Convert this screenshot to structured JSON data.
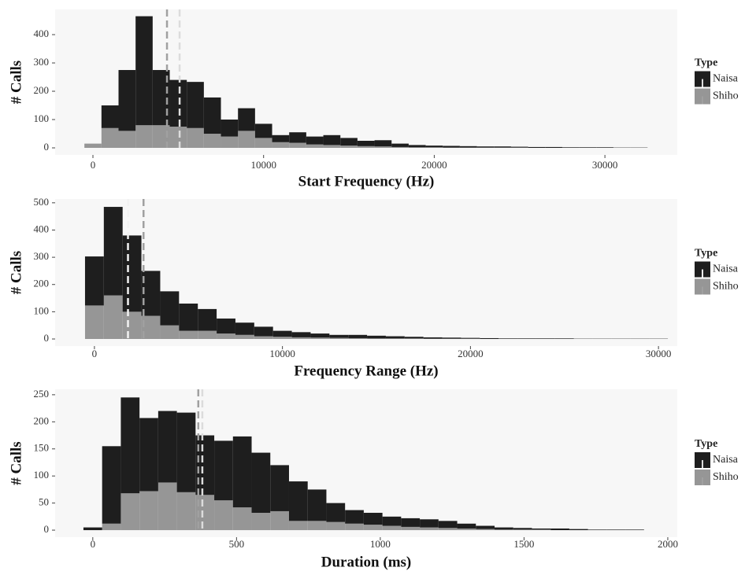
{
  "chart_data": [
    {
      "type": "histogram",
      "x_label": "Start Frequency (Hz)",
      "y_label": "# Calls",
      "legend_title": "Type",
      "legend": "right",
      "bins": [
        -500,
        500,
        1500,
        2500,
        3500,
        4500,
        5500,
        6500,
        7500,
        8500,
        9500,
        10500,
        11500,
        12500,
        13500,
        14500,
        15500,
        16500,
        17500,
        18500,
        19500,
        20500,
        21500,
        22500,
        23500,
        24500,
        25500,
        26500,
        27500,
        28500,
        29500,
        30500,
        31500,
        32500
      ],
      "series": [
        {
          "name": "Naisa",
          "color": "#1e1e1e",
          "mean": 5080,
          "mean_color": "#dcdcdc",
          "values": [
            0,
            80,
            215,
            385,
            195,
            165,
            163,
            128,
            60,
            80,
            50,
            25,
            37,
            28,
            35,
            27,
            19,
            22,
            12,
            8,
            6,
            6,
            5,
            4,
            4,
            3,
            3,
            3,
            2,
            2,
            2,
            1,
            1
          ]
        },
        {
          "name": "Shiho",
          "color": "#969696",
          "mean": 4340,
          "mean_color": "#a0a0a0",
          "values": [
            15,
            70,
            60,
            80,
            80,
            75,
            70,
            50,
            40,
            60,
            35,
            20,
            18,
            12,
            10,
            8,
            6,
            5,
            3,
            2,
            2,
            1,
            1,
            1,
            1,
            1,
            0,
            0,
            0,
            0,
            0,
            0,
            0
          ]
        }
      ],
      "xlim": [
        -2215,
        34240
      ],
      "xticks": [
        0,
        10000,
        20000,
        30000
      ],
      "ylim": [
        -25,
        489
      ],
      "yticks": [
        0,
        100,
        200,
        300,
        400
      ]
    },
    {
      "type": "histogram",
      "x_label": "Frequency Range (Hz)",
      "y_label": "# Calls",
      "legend_title": "Type",
      "legend": "right",
      "bins": [
        -500,
        500,
        1500,
        2500,
        3500,
        4500,
        5500,
        6500,
        7500,
        8500,
        9500,
        10500,
        11500,
        12500,
        13500,
        14500,
        15500,
        16500,
        17500,
        18500,
        19500,
        20500,
        21500,
        22500,
        23500,
        24500,
        25500,
        26500,
        27500,
        28500,
        29500,
        30500
      ],
      "series": [
        {
          "name": "Naisa",
          "color": "#1e1e1e",
          "mean": 1785,
          "mean_color": "#f2f2f2",
          "values": [
            180,
            325,
            280,
            165,
            125,
            100,
            80,
            55,
            45,
            35,
            22,
            19,
            15,
            11,
            12,
            10,
            8,
            6,
            5,
            4,
            3,
            3,
            2,
            2,
            2,
            2,
            1,
            1,
            1,
            1,
            1
          ]
        },
        {
          "name": "Shiho",
          "color": "#969696",
          "mean": 2612,
          "mean_color": "#a0a0a0",
          "values": [
            123,
            160,
            100,
            85,
            50,
            30,
            30,
            20,
            15,
            10,
            8,
            6,
            5,
            4,
            3,
            2,
            2,
            2,
            1,
            1,
            1,
            0,
            0,
            0,
            0,
            0,
            0,
            0,
            0,
            0,
            0
          ]
        }
      ],
      "xlim": [
        -2090,
        31000
      ],
      "xticks": [
        0,
        10000,
        20000,
        30000
      ],
      "ylim": [
        -26,
        514
      ],
      "yticks": [
        0,
        100,
        200,
        300,
        400,
        500
      ]
    },
    {
      "type": "histogram",
      "x_label": "Duration (ms)",
      "y_label": "# Calls",
      "legend_title": "Type",
      "legend": "right",
      "bins": [
        -32.5,
        32.5,
        97.5,
        162.5,
        227.5,
        292.5,
        357.5,
        422.5,
        487.5,
        552.5,
        617.5,
        682.5,
        747.5,
        812.5,
        877.5,
        942.5,
        1007.5,
        1072.5,
        1137.5,
        1202.5,
        1267.5,
        1332.5,
        1397.5,
        1462.5,
        1527.5,
        1592.5,
        1657.5,
        1722.5,
        1787.5,
        1852.5,
        1917.5
      ],
      "series": [
        {
          "name": "Naisa",
          "color": "#1e1e1e",
          "mean": 381,
          "mean_color": "#dcdcdc",
          "values": [
            5,
            143,
            177,
            135,
            132,
            147,
            110,
            110,
            131,
            111,
            85,
            73,
            58,
            35,
            25,
            22,
            17,
            16,
            15,
            13,
            9,
            6,
            4,
            3,
            2,
            3,
            2,
            1,
            1,
            1
          ]
        },
        {
          "name": "Shiho",
          "color": "#969696",
          "mean": 367,
          "mean_color": "#a0a0a0",
          "values": [
            0,
            12,
            68,
            72,
            88,
            70,
            65,
            55,
            42,
            32,
            35,
            17,
            17,
            15,
            12,
            10,
            8,
            6,
            5,
            4,
            3,
            2,
            1,
            1,
            1,
            0,
            0,
            0,
            0,
            0
          ]
        }
      ],
      "xlim": [
        -131,
        2033
      ],
      "xticks": [
        0,
        500,
        1000,
        1500,
        2000
      ],
      "ylim": [
        -13,
        260
      ],
      "yticks": [
        0,
        50,
        100,
        150,
        200,
        250
      ]
    }
  ]
}
